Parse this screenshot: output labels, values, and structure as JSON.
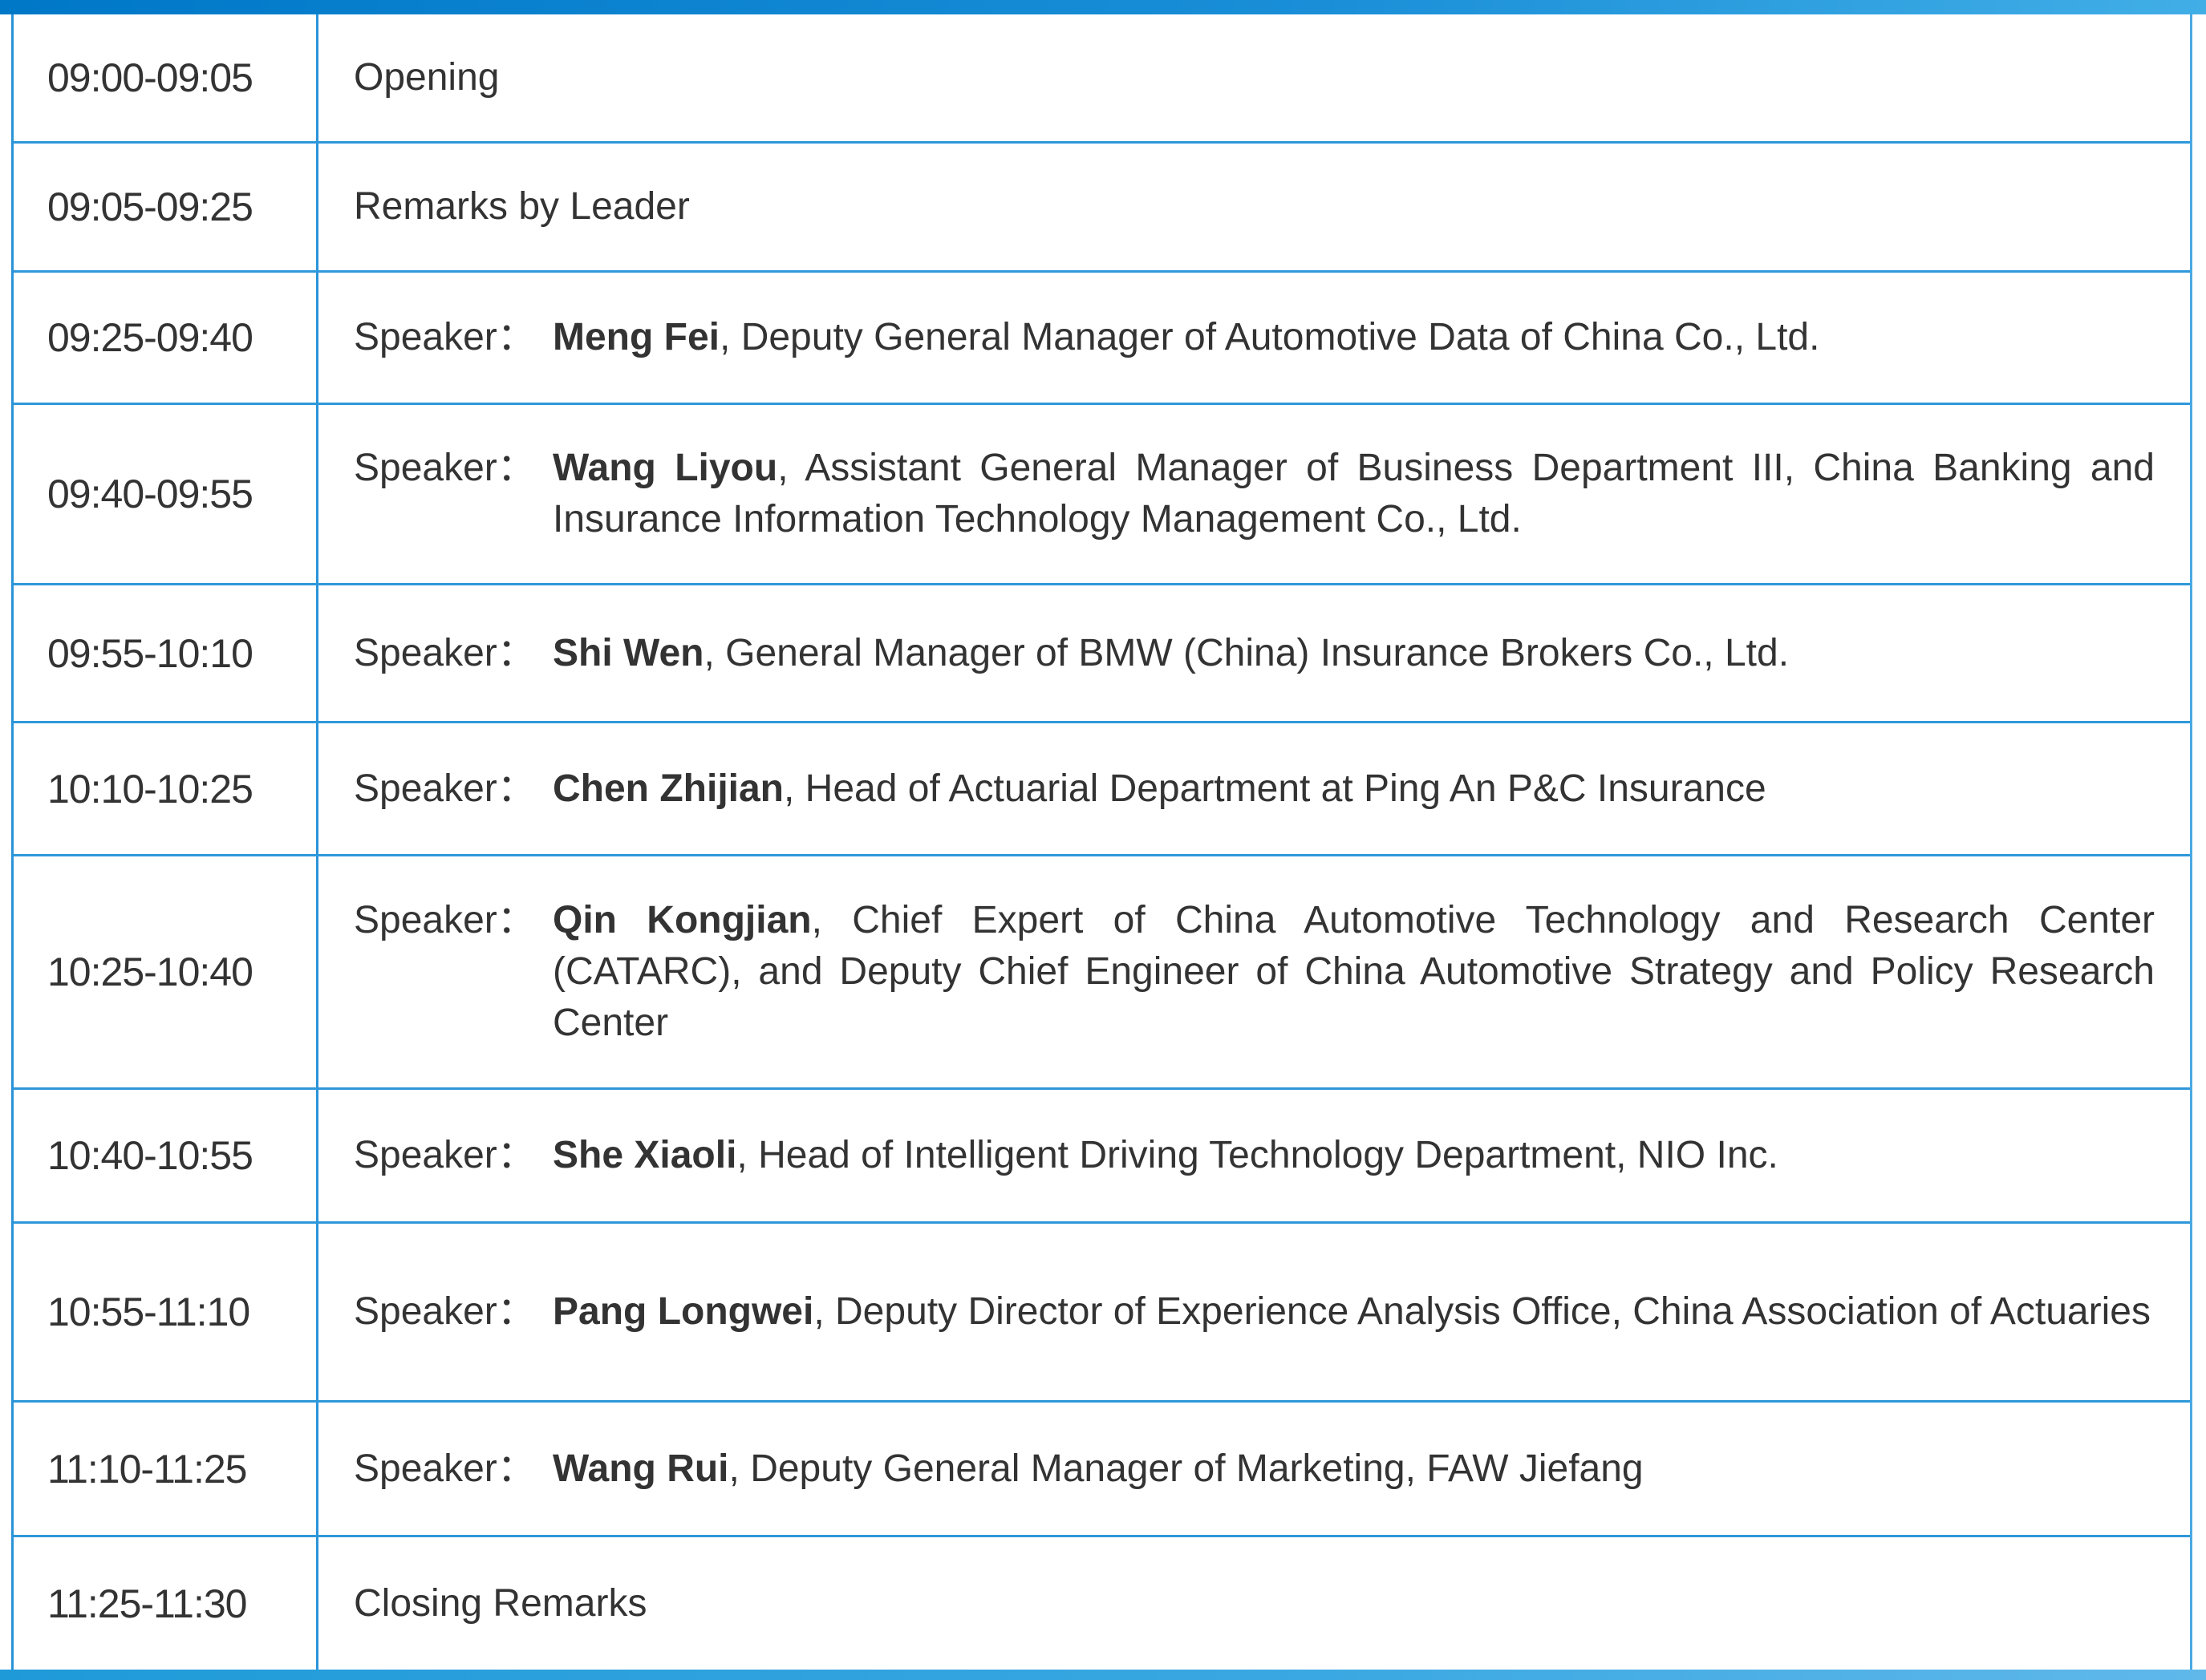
{
  "colors": {
    "border": "#2a93d8",
    "bar": "#0078c8",
    "text": "#333333"
  },
  "agenda": [
    {
      "time": "09:00-09:05",
      "title": "Opening"
    },
    {
      "time": "09:05-09:25",
      "title": "Remarks by Leader"
    },
    {
      "time": "09:25-09:40",
      "label": "Speaker：",
      "name": "Meng Fei",
      "detail": ", Deputy General Manager of Automotive Data of China Co., Ltd."
    },
    {
      "time": "09:40-09:55",
      "label": "Speaker：",
      "name": "Wang Liyou",
      "detail": ", Assistant General Manager of Business Department III, China Banking and Insurance Information Technology Management Co., Ltd."
    },
    {
      "time": "09:55-10:10",
      "label": "Speaker：",
      "name": "Shi Wen",
      "detail": ", General Manager of BMW (China) Insurance Brokers Co., Ltd."
    },
    {
      "time": "10:10-10:25",
      "label": "Speaker：",
      "name": "Chen Zhijian",
      "detail": ", Head of Actuarial Department at Ping An P&C Insurance"
    },
    {
      "time": "10:25-10:40",
      "label": "Speaker：",
      "name": "Qin Kongjian",
      "detail": ", Chief Expert of China Automotive Technology and Research Center (CATARC), and Deputy Chief Engineer of China Automotive Strategy and Policy Research Center"
    },
    {
      "time": "10:40-10:55",
      "label": "Speaker：",
      "name": "She Xiaoli",
      "detail": ", Head of Intelligent Driving Technology Department, NIO Inc."
    },
    {
      "time": "10:55-11:10",
      "label": "Speaker：",
      "name": "Pang Longwei",
      "detail": ", Deputy Director of Experience Analysis Office, China Association of Actuaries"
    },
    {
      "time": "11:10-11:25",
      "label": "Speaker：",
      "name": "Wang Rui",
      "detail": ", Deputy General Manager of Marketing, FAW Jiefang"
    },
    {
      "time": "11:25-11:30",
      "title": "Closing Remarks"
    }
  ]
}
